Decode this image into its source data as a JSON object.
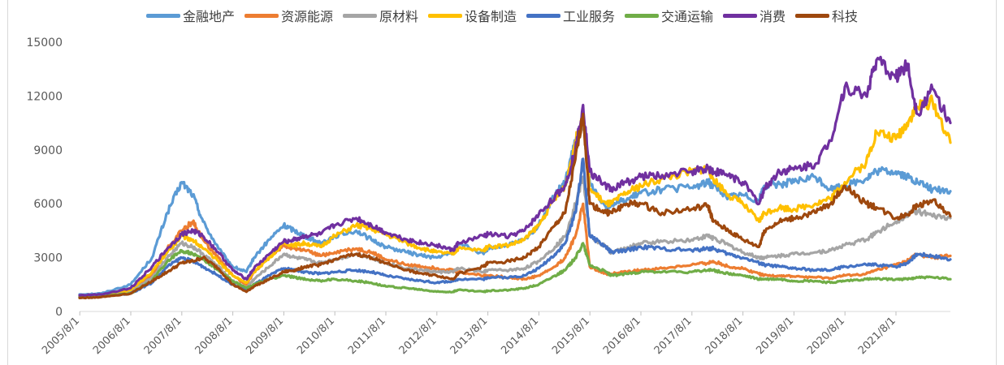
{
  "chart_data": {
    "type": "line",
    "title": "",
    "xlabel": "",
    "ylabel": "",
    "ylim": [
      0,
      15000
    ],
    "y_ticks": [
      "0",
      "3000",
      "6000",
      "9000",
      "12000",
      "15000"
    ],
    "x_ticks": [
      "2005/8/1",
      "2006/8/1",
      "2007/8/1",
      "2008/8/1",
      "2009/8/1",
      "2010/8/1",
      "2011/8/1",
      "2012/8/1",
      "2013/8/1",
      "2014/8/1",
      "2015/8/1",
      "2016/8/1",
      "2017/8/1",
      "2018/8/1",
      "2019/8/1",
      "2020/8/1",
      "2021/8/1"
    ],
    "xlim": [
      2005.58,
      2022.65
    ],
    "legend_position": "top",
    "grid": false,
    "series": [
      {
        "name": "金融地产",
        "color": "#5b9bd5",
        "x": [
          2005.58,
          2006.0,
          2006.58,
          2007.0,
          2007.3,
          2007.58,
          2007.8,
          2008.0,
          2008.3,
          2008.58,
          2008.85,
          2009.0,
          2009.3,
          2009.58,
          2009.8,
          2010.0,
          2010.3,
          2010.58,
          2011.0,
          2011.3,
          2011.58,
          2012.0,
          2012.3,
          2012.58,
          2012.9,
          2013.0,
          2013.5,
          2013.58,
          2014.0,
          2014.3,
          2014.58,
          2014.9,
          2015.1,
          2015.3,
          2015.45,
          2015.58,
          2015.9,
          2016.0,
          2016.3,
          2016.58,
          2017.0,
          2017.58,
          2017.9,
          2018.0,
          2018.3,
          2018.58,
          2018.9,
          2019.0,
          2019.3,
          2019.58,
          2020.0,
          2020.3,
          2020.58,
          2021.0,
          2021.2,
          2021.58,
          2021.8,
          2022.0,
          2022.3,
          2022.65
        ],
        "y": [
          950,
          1000,
          1500,
          3000,
          5500,
          7200,
          6500,
          5000,
          3500,
          2500,
          2200,
          3000,
          4000,
          4800,
          4500,
          4200,
          3800,
          4200,
          4500,
          4000,
          3600,
          3300,
          3100,
          3000,
          3300,
          3800,
          3200,
          3500,
          3700,
          4000,
          4800,
          6500,
          7200,
          9500,
          10500,
          7200,
          5800,
          6000,
          6200,
          6600,
          6800,
          6900,
          7200,
          7000,
          6400,
          6500,
          6200,
          7000,
          7100,
          7200,
          7500,
          6800,
          7000,
          7400,
          7800,
          7800,
          7500,
          7200,
          6800,
          6700
        ]
      },
      {
        "name": "资源能源",
        "color": "#ed7d31",
        "x": [
          2005.58,
          2006.0,
          2006.58,
          2007.0,
          2007.3,
          2007.58,
          2007.8,
          2008.0,
          2008.3,
          2008.58,
          2008.85,
          2009.0,
          2009.3,
          2009.58,
          2009.8,
          2010.0,
          2010.3,
          2010.58,
          2011.0,
          2011.3,
          2011.58,
          2012.0,
          2012.3,
          2012.58,
          2012.9,
          2013.0,
          2013.5,
          2013.58,
          2014.0,
          2014.3,
          2014.58,
          2014.9,
          2015.1,
          2015.3,
          2015.45,
          2015.58,
          2015.9,
          2016.0,
          2016.3,
          2016.58,
          2017.0,
          2017.58,
          2017.9,
          2018.0,
          2018.3,
          2018.58,
          2018.9,
          2019.0,
          2019.3,
          2019.58,
          2020.0,
          2020.3,
          2020.58,
          2021.0,
          2021.2,
          2021.58,
          2021.8,
          2022.0,
          2022.3,
          2022.65
        ],
        "y": [
          850,
          900,
          1200,
          2000,
          3500,
          4500,
          5000,
          4000,
          3000,
          2000,
          1500,
          2200,
          3000,
          3700,
          3500,
          3400,
          3100,
          3300,
          3500,
          3300,
          2900,
          2600,
          2500,
          2400,
          2300,
          2200,
          2000,
          2000,
          1900,
          1800,
          2000,
          2500,
          3000,
          4200,
          6000,
          2500,
          2100,
          2100,
          2200,
          2300,
          2400,
          2600,
          2700,
          2800,
          2500,
          2400,
          2100,
          2000,
          2000,
          1950,
          1900,
          1850,
          2000,
          2100,
          2300,
          2600,
          2800,
          3200,
          3000,
          3100
        ]
      },
      {
        "name": "原材料",
        "color": "#a5a5a5",
        "x": [
          2005.58,
          2006.0,
          2006.58,
          2007.0,
          2007.3,
          2007.58,
          2007.8,
          2008.0,
          2008.3,
          2008.58,
          2008.85,
          2009.0,
          2009.3,
          2009.58,
          2009.8,
          2010.0,
          2010.3,
          2010.58,
          2011.0,
          2011.3,
          2011.58,
          2012.0,
          2012.3,
          2012.58,
          2012.9,
          2013.0,
          2013.5,
          2013.58,
          2014.0,
          2014.3,
          2014.58,
          2014.9,
          2015.1,
          2015.3,
          2015.45,
          2015.58,
          2015.9,
          2016.0,
          2016.3,
          2016.58,
          2017.0,
          2017.58,
          2017.9,
          2018.0,
          2018.3,
          2018.58,
          2018.9,
          2019.0,
          2019.3,
          2019.58,
          2020.0,
          2020.3,
          2020.58,
          2021.0,
          2021.2,
          2021.58,
          2021.8,
          2022.0,
          2022.3,
          2022.65
        ],
        "y": [
          800,
          850,
          1100,
          1900,
          3000,
          3800,
          3600,
          3200,
          2500,
          1700,
          1300,
          1800,
          2500,
          3200,
          3000,
          2900,
          2700,
          2900,
          3200,
          3000,
          2700,
          2400,
          2300,
          2200,
          2200,
          2400,
          2200,
          2300,
          2300,
          2400,
          2800,
          3600,
          4200,
          6000,
          7500,
          4200,
          3600,
          3300,
          3500,
          3800,
          3900,
          4000,
          4200,
          4100,
          3700,
          3300,
          3000,
          3000,
          3100,
          3200,
          3300,
          3400,
          3700,
          4000,
          4400,
          5000,
          5400,
          5600,
          5300,
          5200
        ]
      },
      {
        "name": "设备制造",
        "color": "#ffc000",
        "x": [
          2005.58,
          2006.0,
          2006.58,
          2007.0,
          2007.3,
          2007.58,
          2007.8,
          2008.0,
          2008.3,
          2008.58,
          2008.85,
          2009.0,
          2009.3,
          2009.58,
          2009.8,
          2010.0,
          2010.3,
          2010.58,
          2011.0,
          2011.3,
          2011.58,
          2012.0,
          2012.3,
          2012.58,
          2012.9,
          2013.0,
          2013.5,
          2013.58,
          2014.0,
          2014.3,
          2014.58,
          2014.9,
          2015.1,
          2015.3,
          2015.45,
          2015.58,
          2015.9,
          2016.0,
          2016.3,
          2016.58,
          2017.0,
          2017.58,
          2017.9,
          2018.0,
          2018.3,
          2018.58,
          2018.9,
          2019.0,
          2019.3,
          2019.58,
          2020.0,
          2020.3,
          2020.58,
          2021.0,
          2021.2,
          2021.58,
          2021.8,
          2022.0,
          2022.3,
          2022.65
        ],
        "y": [
          850,
          900,
          1200,
          2200,
          3300,
          4200,
          4000,
          3500,
          2800,
          2000,
          1600,
          2200,
          3000,
          3800,
          3700,
          3800,
          3600,
          4200,
          4800,
          4600,
          4300,
          3800,
          3500,
          3300,
          3200,
          3500,
          3400,
          3600,
          3700,
          4000,
          4800,
          6300,
          7000,
          9500,
          11000,
          6800,
          6000,
          6000,
          6600,
          7000,
          7400,
          7800,
          8000,
          7400,
          6500,
          6000,
          5000,
          5500,
          5800,
          5700,
          6000,
          6300,
          7200,
          8300,
          10000,
          9600,
          10500,
          11400,
          11700,
          9400
        ]
      },
      {
        "name": "工业服务",
        "color": "#4472c4",
        "x": [
          2005.58,
          2006.0,
          2006.58,
          2007.0,
          2007.3,
          2007.58,
          2007.8,
          2008.0,
          2008.3,
          2008.58,
          2008.85,
          2009.0,
          2009.3,
          2009.58,
          2009.8,
          2010.0,
          2010.3,
          2010.58,
          2011.0,
          2011.3,
          2011.58,
          2012.0,
          2012.3,
          2012.58,
          2012.9,
          2013.0,
          2013.5,
          2013.58,
          2014.0,
          2014.3,
          2014.58,
          2014.9,
          2015.1,
          2015.3,
          2015.45,
          2015.58,
          2015.9,
          2016.0,
          2016.3,
          2016.58,
          2017.0,
          2017.58,
          2017.9,
          2018.0,
          2018.3,
          2018.58,
          2018.9,
          2019.0,
          2019.3,
          2019.58,
          2020.0,
          2020.3,
          2020.58,
          2021.0,
          2021.2,
          2021.58,
          2021.8,
          2022.0,
          2022.3,
          2022.65
        ],
        "y": [
          800,
          850,
          1000,
          1600,
          2500,
          3000,
          2800,
          2500,
          2000,
          1500,
          1200,
          1500,
          2000,
          2400,
          2300,
          2200,
          2100,
          2200,
          2300,
          2200,
          2000,
          1800,
          1700,
          1600,
          1700,
          1800,
          1800,
          1900,
          1900,
          2000,
          2400,
          3200,
          3800,
          5500,
          8500,
          4200,
          3600,
          3300,
          3400,
          3600,
          3500,
          3400,
          3500,
          3500,
          3200,
          3000,
          2700,
          2600,
          2500,
          2400,
          2300,
          2300,
          2500,
          2600,
          2600,
          2500,
          2700,
          3200,
          3100,
          2900
        ]
      },
      {
        "name": "交通运输",
        "color": "#70ad47",
        "x": [
          2005.58,
          2006.0,
          2006.58,
          2007.0,
          2007.3,
          2007.58,
          2007.8,
          2008.0,
          2008.3,
          2008.58,
          2008.85,
          2009.0,
          2009.3,
          2009.58,
          2009.8,
          2010.0,
          2010.3,
          2010.58,
          2011.0,
          2011.3,
          2011.58,
          2012.0,
          2012.3,
          2012.58,
          2012.9,
          2013.0,
          2013.5,
          2013.58,
          2014.0,
          2014.3,
          2014.58,
          2014.9,
          2015.1,
          2015.3,
          2015.45,
          2015.58,
          2015.9,
          2016.0,
          2016.3,
          2016.58,
          2017.0,
          2017.58,
          2017.9,
          2018.0,
          2018.3,
          2018.58,
          2018.9,
          2019.0,
          2019.3,
          2019.58,
          2020.0,
          2020.3,
          2020.58,
          2021.0,
          2021.2,
          2021.58,
          2021.8,
          2022.0,
          2022.3,
          2022.65
        ],
        "y": [
          800,
          850,
          1000,
          1700,
          2800,
          3400,
          3200,
          2900,
          2300,
          1700,
          1300,
          1500,
          1800,
          2000,
          1900,
          1800,
          1700,
          1800,
          1700,
          1600,
          1400,
          1300,
          1200,
          1100,
          1100,
          1200,
          1100,
          1150,
          1200,
          1300,
          1500,
          2000,
          2300,
          3000,
          3800,
          2600,
          2200,
          2000,
          2100,
          2200,
          2200,
          2200,
          2300,
          2300,
          2100,
          2000,
          1800,
          1800,
          1800,
          1700,
          1700,
          1600,
          1700,
          1800,
          1800,
          1800,
          1800,
          1900,
          1900,
          1800
        ]
      },
      {
        "name": "消费",
        "color": "#7030a0",
        "x": [
          2005.58,
          2006.0,
          2006.58,
          2007.0,
          2007.3,
          2007.58,
          2007.8,
          2008.0,
          2008.3,
          2008.58,
          2008.85,
          2009.0,
          2009.3,
          2009.58,
          2009.8,
          2010.0,
          2010.3,
          2010.58,
          2011.0,
          2011.3,
          2011.58,
          2012.0,
          2012.3,
          2012.58,
          2012.9,
          2013.0,
          2013.5,
          2013.58,
          2014.0,
          2014.3,
          2014.58,
          2014.9,
          2015.1,
          2015.3,
          2015.45,
          2015.58,
          2015.9,
          2016.0,
          2016.3,
          2016.58,
          2017.0,
          2017.58,
          2017.9,
          2018.0,
          2018.3,
          2018.58,
          2018.9,
          2019.0,
          2019.3,
          2019.58,
          2020.0,
          2020.3,
          2020.58,
          2021.0,
          2021.2,
          2021.58,
          2021.8,
          2022.0,
          2022.3,
          2022.65
        ],
        "y": [
          900,
          950,
          1300,
          2500,
          3500,
          4300,
          4500,
          4200,
          3300,
          2300,
          1800,
          2400,
          3200,
          3900,
          4000,
          4200,
          4300,
          4800,
          5200,
          4800,
          4400,
          4000,
          3800,
          3700,
          3400,
          3800,
          4200,
          4300,
          4200,
          4500,
          5400,
          6400,
          7000,
          9000,
          11500,
          7800,
          7000,
          6800,
          7200,
          7500,
          7600,
          7800,
          8000,
          7800,
          7600,
          7200,
          6000,
          6800,
          7800,
          7900,
          8200,
          9500,
          12500,
          12000,
          14000,
          13000,
          13800,
          11000,
          12400,
          10500
        ]
      },
      {
        "name": "科技",
        "color": "#9e480e",
        "x": [
          2005.58,
          2006.0,
          2006.58,
          2007.0,
          2007.3,
          2007.58,
          2007.8,
          2008.0,
          2008.3,
          2008.58,
          2008.85,
          2009.0,
          2009.3,
          2009.58,
          2009.8,
          2010.0,
          2010.3,
          2010.58,
          2011.0,
          2011.3,
          2011.58,
          2012.0,
          2012.3,
          2012.58,
          2012.9,
          2013.0,
          2013.5,
          2013.58,
          2014.0,
          2014.3,
          2014.58,
          2014.9,
          2015.1,
          2015.3,
          2015.45,
          2015.58,
          2015.9,
          2016.0,
          2016.3,
          2016.58,
          2017.0,
          2017.58,
          2017.9,
          2018.0,
          2018.3,
          2018.58,
          2018.9,
          2019.0,
          2019.3,
          2019.58,
          2020.0,
          2020.3,
          2020.58,
          2021.0,
          2021.2,
          2021.58,
          2021.8,
          2022.0,
          2022.3,
          2022.65
        ],
        "y": [
          750,
          800,
          1000,
          1700,
          2200,
          2700,
          2800,
          3000,
          2400,
          1500,
          1100,
          1400,
          1800,
          2200,
          2300,
          2500,
          2600,
          2900,
          3200,
          3000,
          2700,
          2300,
          2100,
          2000,
          1800,
          2100,
          2500,
          2700,
          2800,
          3000,
          3600,
          4800,
          5500,
          8500,
          11000,
          6000,
          5500,
          5500,
          6000,
          6000,
          5500,
          5700,
          5900,
          5000,
          4500,
          4000,
          3600,
          4500,
          5000,
          5200,
          5500,
          6000,
          7000,
          6000,
          5800,
          5200,
          5400,
          5900,
          6200,
          5300
        ]
      }
    ]
  }
}
